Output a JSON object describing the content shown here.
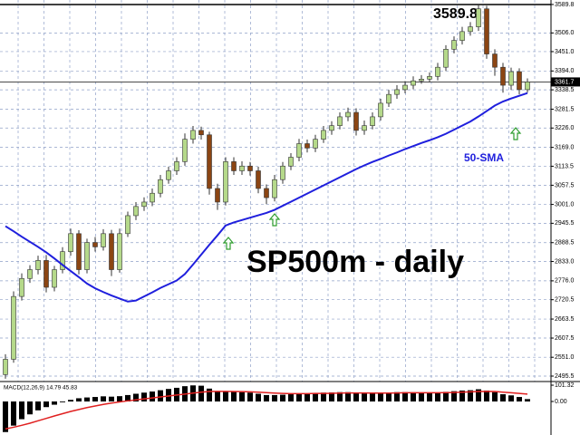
{
  "chart_data": [
    {
      "type": "candlestick",
      "title": "SP500m - daily",
      "ylim": [
        2479.5,
        3603
      ],
      "yticks": [
        3589.8,
        {
          "value": 3506,
          "label": "3506.0"
        },
        {
          "value": 3451,
          "label": "3451.0"
        },
        {
          "value": 3394,
          "label": "3394.0"
        },
        3338.5,
        3281.5,
        {
          "value": 3226,
          "label": "3226.0"
        },
        {
          "value": 3169,
          "label": "3169.0"
        },
        3113.5,
        3057.5,
        {
          "value": 3001,
          "label": "3001.0"
        },
        2945.5,
        2888.5,
        {
          "value": 2833,
          "label": "2833.0"
        },
        {
          "value": 2776,
          "label": "2776.0"
        },
        2720.5,
        2663.5,
        2607.5,
        {
          "value": 2551,
          "label": "2551.0"
        },
        2495.5
      ],
      "grid": true,
      "up_color": "#b5d98a",
      "down_color": "#8b4513",
      "wick_color": "#333333",
      "open": [
        2500,
        2545,
        2730,
        2783,
        2809,
        2836,
        2757,
        2809,
        2862,
        2915,
        2809,
        2889,
        2876,
        2915,
        2809,
        2915,
        2968,
        2995,
        3008,
        3034,
        3074,
        3100,
        3127,
        3193,
        3219,
        3206,
        3048,
        3008,
        3127,
        3100,
        3114,
        3100,
        3048,
        3021,
        3074,
        3114,
        3140,
        3180,
        3167,
        3193,
        3219,
        3233,
        3259,
        3272,
        3219,
        3233,
        3259,
        3299,
        3325,
        3339,
        3352,
        3365,
        3370,
        3378,
        3405,
        3458,
        3484,
        3510,
        3524,
        3577,
        3444,
        3405,
        3352,
        3392,
        3339
      ],
      "high": [
        2560,
        2745,
        2798,
        2822,
        2850,
        2852,
        2820,
        2875,
        2930,
        2925,
        2900,
        2905,
        2928,
        2926,
        2930,
        2980,
        3008,
        3022,
        3048,
        3088,
        3112,
        3140,
        3210,
        3232,
        3230,
        3215,
        3062,
        3140,
        3140,
        3128,
        3126,
        3112,
        3060,
        3088,
        3126,
        3152,
        3194,
        3192,
        3206,
        3232,
        3246,
        3272,
        3286,
        3284,
        3248,
        3272,
        3312,
        3338,
        3352,
        3364,
        3378,
        3382,
        3390,
        3418,
        3470,
        3496,
        3524,
        3538,
        3589.8,
        3586,
        3458,
        3418,
        3404,
        3402,
        3372
      ],
      "low": [
        2488,
        2535,
        2718,
        2770,
        2795,
        2742,
        2745,
        2798,
        2850,
        2795,
        2798,
        2862,
        2865,
        2790,
        2800,
        2905,
        2955,
        2982,
        2996,
        3022,
        3062,
        3088,
        3115,
        3180,
        3192,
        3030,
        2985,
        2998,
        3088,
        3088,
        3086,
        3034,
        3002,
        3010,
        3062,
        3102,
        3128,
        3154,
        3155,
        3182,
        3206,
        3222,
        3246,
        3204,
        3206,
        3222,
        3248,
        3288,
        3312,
        3328,
        3340,
        3356,
        3360,
        3366,
        3394,
        3446,
        3472,
        3498,
        3512,
        3430,
        3380,
        3330,
        3338,
        3325,
        3330
      ],
      "close": [
        2545,
        2730,
        2783,
        2809,
        2836,
        2757,
        2809,
        2862,
        2915,
        2809,
        2889,
        2876,
        2915,
        2809,
        2915,
        2968,
        2995,
        3008,
        3034,
        3074,
        3100,
        3127,
        3193,
        3219,
        3206,
        3048,
        3008,
        3127,
        3100,
        3114,
        3100,
        3048,
        3021,
        3074,
        3114,
        3140,
        3180,
        3167,
        3193,
        3219,
        3233,
        3259,
        3272,
        3219,
        3233,
        3259,
        3299,
        3325,
        3339,
        3352,
        3365,
        3370,
        3378,
        3405,
        3458,
        3484,
        3510,
        3524,
        3577,
        3444,
        3405,
        3352,
        3392,
        3339,
        3361.7
      ],
      "sma": {
        "name": "50-SMA",
        "color": "#1f1fdd",
        "values": [
          2937,
          2922,
          2906,
          2891,
          2876,
          2860,
          2842,
          2823,
          2805,
          2787,
          2768,
          2754,
          2743,
          2733,
          2724,
          2715,
          2718,
          2730,
          2742,
          2755,
          2766,
          2777,
          2796,
          2824,
          2853,
          2882,
          2910,
          2939,
          2948,
          2955,
          2962,
          2969,
          2976,
          2985,
          2997,
          3009,
          3021,
          3033,
          3045,
          3057,
          3069,
          3081,
          3093,
          3105,
          3116,
          3126,
          3135,
          3145,
          3154,
          3164,
          3173,
          3182,
          3190,
          3199,
          3209,
          3221,
          3233,
          3245,
          3260,
          3276,
          3292,
          3304,
          3313,
          3321,
          3329
        ]
      },
      "high_annotation": 3589.8,
      "current_price": 3361.7
    },
    {
      "type": "macd",
      "title": "MACD(12,26,9) 14.79 45.83",
      "ylim": [
        -197,
        124
      ],
      "yticks": [
        101.32,
        {
          "value": 0,
          "label": "0.00"
        }
      ],
      "series": [
        {
          "color": "#000000",
          "values": [
            -190,
            -150,
            -110,
            -80,
            -55,
            -35,
            -20,
            -5,
            10,
            20,
            25,
            28,
            32,
            30,
            33,
            40,
            48,
            55,
            62,
            70,
            78,
            85,
            95,
            100,
            98,
            80,
            60,
            62,
            60,
            58,
            55,
            48,
            40,
            40,
            42,
            45,
            50,
            50,
            52,
            55,
            56,
            58,
            58,
            52,
            50,
            50,
            53,
            56,
            58,
            58,
            57,
            55,
            53,
            55,
            60,
            64,
            68,
            70,
            76,
            68,
            58,
            45,
            38,
            28,
            14.79
          ]
        },
        {
          "color": "#e02020",
          "values": [
            -170,
            -160,
            -148,
            -135,
            -120,
            -105,
            -90,
            -76,
            -62,
            -50,
            -38,
            -28,
            -18,
            -10,
            -3,
            4,
            10,
            16,
            22,
            28,
            34,
            40,
            46,
            52,
            58,
            62,
            63,
            63,
            62,
            61,
            60,
            58,
            55,
            52,
            50,
            49,
            49,
            49,
            50,
            50,
            51,
            52,
            53,
            53,
            53,
            52,
            52,
            52,
            53,
            54,
            54,
            54,
            54,
            54,
            55,
            56,
            58,
            60,
            62,
            63,
            62,
            58,
            54,
            50,
            45.83
          ]
        }
      ]
    }
  ]
}
